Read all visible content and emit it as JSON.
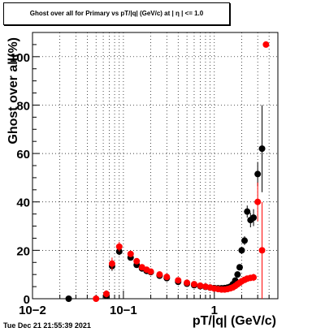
{
  "chart_data": {
    "type": "scatter",
    "title": "Ghost over all for Primary vs pT/|q| (GeV/c) at | η | <= 1.0",
    "xlabel": "pT/|q| (GeV/c)",
    "ylabel": "Ghost over all(%)",
    "xscale": "log",
    "xlim": [
      0.01,
      5
    ],
    "ylim": [
      0,
      110
    ],
    "grid": true,
    "x_tick_labels": [
      "10−2",
      "10−1",
      "1"
    ],
    "y_tick_labels": [
      "0",
      "20",
      "40",
      "60",
      "80",
      "100"
    ],
    "series": [
      {
        "color": "#000000",
        "points": [
          {
            "x": 0.025,
            "y": 0,
            "err": 0
          },
          {
            "x": 0.065,
            "y": 1.2,
            "err": 1.2
          },
          {
            "x": 0.075,
            "y": 13.5,
            "err": 2
          },
          {
            "x": 0.09,
            "y": 19.5,
            "err": 1.5
          },
          {
            "x": 0.12,
            "y": 17,
            "err": 1
          },
          {
            "x": 0.14,
            "y": 14,
            "err": 0.7
          },
          {
            "x": 0.16,
            "y": 12.5,
            "err": 0.5
          },
          {
            "x": 0.18,
            "y": 11.5,
            "err": 0.4
          },
          {
            "x": 0.2,
            "y": 11,
            "err": 0.3
          },
          {
            "x": 0.25,
            "y": 9.5,
            "err": 0.3
          },
          {
            "x": 0.3,
            "y": 8.5,
            "err": 0.2
          },
          {
            "x": 0.4,
            "y": 7,
            "err": 0.2
          },
          {
            "x": 0.5,
            "y": 6.2,
            "err": 0.2
          },
          {
            "x": 0.6,
            "y": 5.6,
            "err": 0.2
          },
          {
            "x": 0.7,
            "y": 5.2,
            "err": 0.2
          },
          {
            "x": 0.8,
            "y": 4.9,
            "err": 0.2
          },
          {
            "x": 0.9,
            "y": 4.6,
            "err": 0.2
          },
          {
            "x": 1.0,
            "y": 4.4,
            "err": 0.2
          },
          {
            "x": 1.1,
            "y": 4.3,
            "err": 0.2
          },
          {
            "x": 1.2,
            "y": 4.3,
            "err": 0.3
          },
          {
            "x": 1.3,
            "y": 4.4,
            "err": 0.3
          },
          {
            "x": 1.4,
            "y": 4.6,
            "err": 0.3
          },
          {
            "x": 1.5,
            "y": 5,
            "err": 0.4
          },
          {
            "x": 1.6,
            "y": 6,
            "err": 0.5
          },
          {
            "x": 1.7,
            "y": 7.5,
            "err": 0.6
          },
          {
            "x": 1.8,
            "y": 10,
            "err": 0.8
          },
          {
            "x": 1.9,
            "y": 13,
            "err": 1
          },
          {
            "x": 2.0,
            "y": 20,
            "err": 1.5
          },
          {
            "x": 2.15,
            "y": 24,
            "err": 1.8
          },
          {
            "x": 2.3,
            "y": 36,
            "err": 2.5
          },
          {
            "x": 2.5,
            "y": 32.5,
            "err": 3
          },
          {
            "x": 2.7,
            "y": 33.5,
            "err": 3.5
          },
          {
            "x": 3.0,
            "y": 51.5,
            "err": 5
          },
          {
            "x": 3.35,
            "y": 62,
            "err": 18
          }
        ]
      },
      {
        "color": "#ff0000",
        "points": [
          {
            "x": 0.05,
            "y": 0,
            "err": 0
          },
          {
            "x": 0.065,
            "y": 2,
            "err": 1.5
          },
          {
            "x": 0.075,
            "y": 14.5,
            "err": 2.5
          },
          {
            "x": 0.09,
            "y": 21.5,
            "err": 2
          },
          {
            "x": 0.12,
            "y": 18.5,
            "err": 1.2
          },
          {
            "x": 0.14,
            "y": 15.5,
            "err": 0.8
          },
          {
            "x": 0.16,
            "y": 13,
            "err": 0.6
          },
          {
            "x": 0.18,
            "y": 12,
            "err": 0.5
          },
          {
            "x": 0.2,
            "y": 11.2,
            "err": 0.4
          },
          {
            "x": 0.25,
            "y": 10,
            "err": 0.3
          },
          {
            "x": 0.3,
            "y": 9,
            "err": 0.3
          },
          {
            "x": 0.4,
            "y": 7.6,
            "err": 0.2
          },
          {
            "x": 0.5,
            "y": 6.6,
            "err": 0.2
          },
          {
            "x": 0.6,
            "y": 6,
            "err": 0.2
          },
          {
            "x": 0.7,
            "y": 5.4,
            "err": 0.2
          },
          {
            "x": 0.8,
            "y": 5,
            "err": 0.2
          },
          {
            "x": 0.9,
            "y": 4.6,
            "err": 0.2
          },
          {
            "x": 1.0,
            "y": 4.2,
            "err": 0.2
          },
          {
            "x": 1.1,
            "y": 4,
            "err": 0.2
          },
          {
            "x": 1.2,
            "y": 3.8,
            "err": 0.3
          },
          {
            "x": 1.3,
            "y": 3.8,
            "err": 0.3
          },
          {
            "x": 1.4,
            "y": 4,
            "err": 0.3
          },
          {
            "x": 1.5,
            "y": 4.3,
            "err": 0.3
          },
          {
            "x": 1.6,
            "y": 4.7,
            "err": 0.4
          },
          {
            "x": 1.7,
            "y": 5.3,
            "err": 0.4
          },
          {
            "x": 1.8,
            "y": 6,
            "err": 0.5
          },
          {
            "x": 1.9,
            "y": 6.6,
            "err": 0.6
          },
          {
            "x": 2.0,
            "y": 7.2,
            "err": 0.7
          },
          {
            "x": 2.15,
            "y": 7.8,
            "err": 0.8
          },
          {
            "x": 2.3,
            "y": 8.3,
            "err": 1
          },
          {
            "x": 2.5,
            "y": 8.6,
            "err": 1.2
          },
          {
            "x": 2.7,
            "y": 8.8,
            "err": 1.5
          },
          {
            "x": 3.0,
            "y": 40,
            "err": 8
          },
          {
            "x": 3.35,
            "y": 20,
            "err": 20
          },
          {
            "x": 3.7,
            "y": 105,
            "err": 0
          }
        ]
      }
    ]
  },
  "footer": {
    "timestamp": "Tue Dec 21 21:55:39 2021"
  }
}
